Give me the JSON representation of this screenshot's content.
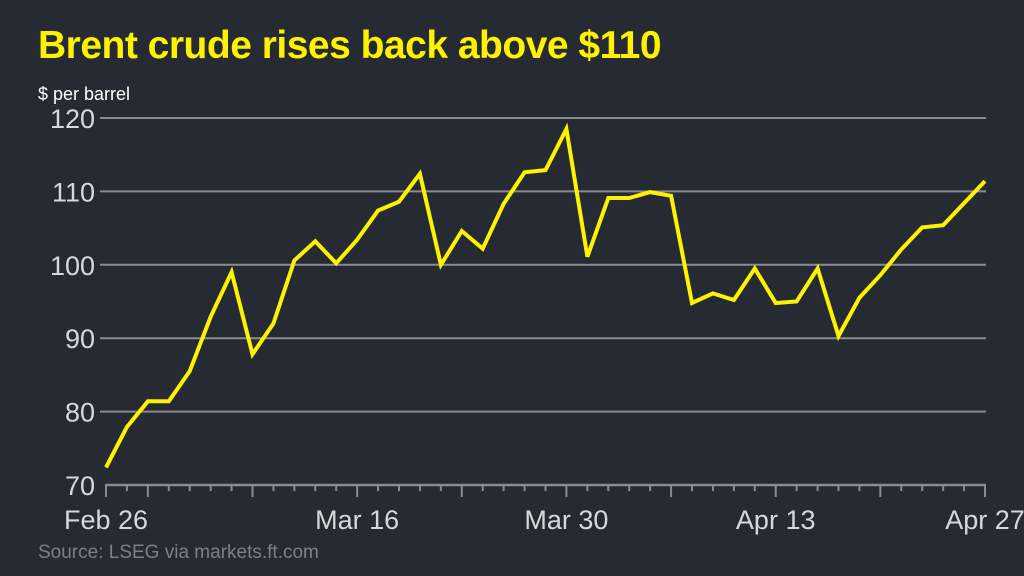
{
  "chart_data": {
    "type": "line",
    "title": "Brent crude rises back above $110",
    "ylabel": "$ per barrel",
    "source": "Source: LSEG via markets.ft.com",
    "ylim": [
      70,
      120
    ],
    "yticks": [
      70,
      80,
      90,
      100,
      110,
      120
    ],
    "xticklabels": [
      "Feb 26",
      "Mar 16",
      "Mar 30",
      "Apr 13",
      "Apr 27"
    ],
    "grid": true,
    "line_color": "#fff200",
    "x": [
      "Feb 26",
      "Feb 27",
      "Mar 2",
      "Mar 3",
      "Mar 4",
      "Mar 5",
      "Mar 6",
      "Mar 9",
      "Mar 10",
      "Mar 11",
      "Mar 12",
      "Mar 13",
      "Mar 16",
      "Mar 17",
      "Mar 18",
      "Mar 19",
      "Mar 20",
      "Mar 23",
      "Mar 24",
      "Mar 25",
      "Mar 26",
      "Mar 27",
      "Mar 30",
      "Mar 31",
      "Apr 1",
      "Apr 2",
      "Apr 3",
      "Apr 6",
      "Apr 7",
      "Apr 8",
      "Apr 9",
      "Apr 10",
      "Apr 13",
      "Apr 14",
      "Apr 15",
      "Apr 16",
      "Apr 17",
      "Apr 20",
      "Apr 21",
      "Apr 22",
      "Apr 23",
      "Apr 24",
      "Apr 27"
    ],
    "values": [
      72.4,
      77.9,
      81.4,
      81.4,
      85.5,
      92.9,
      99.0,
      87.8,
      92.0,
      100.6,
      103.2,
      100.2,
      103.4,
      107.4,
      108.6,
      112.4,
      100.0,
      104.6,
      102.2,
      108.3,
      112.6,
      112.9,
      118.5,
      101.1,
      109.1,
      109.1,
      109.9,
      109.4,
      94.8,
      96.1,
      95.2,
      99.5,
      94.8,
      95.0,
      99.5,
      90.3,
      95.5,
      98.6,
      102.1,
      105.1,
      105.4,
      108.4,
      111.4
    ]
  }
}
